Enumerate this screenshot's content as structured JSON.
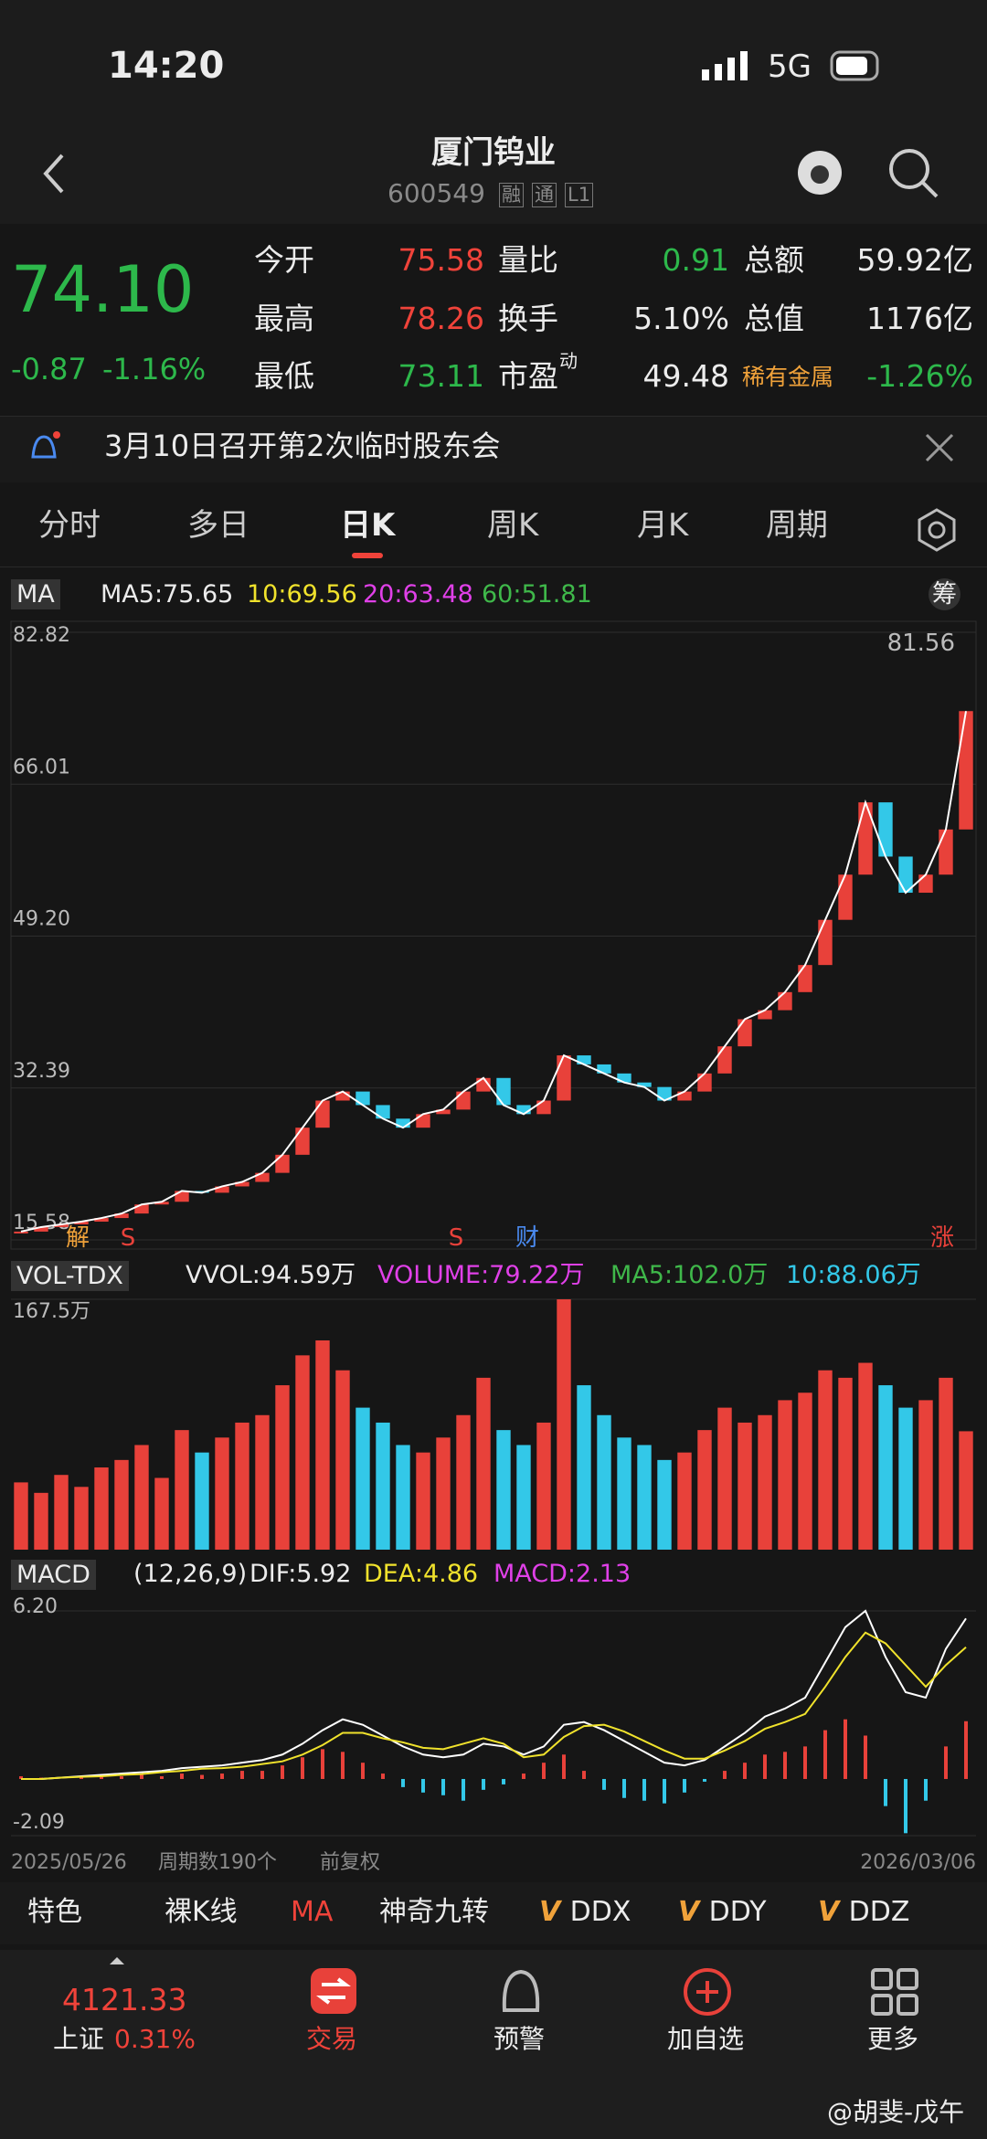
{
  "status": {
    "time": "14:20",
    "network": "5G"
  },
  "header": {
    "title": "厦门钨业",
    "code": "600549",
    "badges": [
      "融",
      "通",
      "L1"
    ]
  },
  "quote": {
    "price": "74.10",
    "change": "-0.87",
    "change_pct": "-1.16%",
    "rows": [
      [
        {
          "label": "今开",
          "value": "75.58"
        },
        {
          "label": "量比",
          "value": "0.91"
        },
        {
          "label": "总额",
          "value": "59.92亿"
        }
      ],
      [
        {
          "label": "最高",
          "value": "78.26"
        },
        {
          "label": "换手",
          "value": "5.10%"
        },
        {
          "label": "总值",
          "value": "1176亿"
        }
      ],
      [
        {
          "label": "最低",
          "value": "73.11"
        },
        {
          "label": "市盈",
          "sup": "动",
          "value": "49.48"
        },
        {
          "label": "稀有金属",
          "value": "-1.26%"
        }
      ]
    ]
  },
  "notice": "3月10日召开第2次临时股东会",
  "tabs": [
    "分时",
    "多日",
    "日K",
    "周K",
    "月K",
    "周期"
  ],
  "ma_legend": {
    "name": "MA",
    "items": [
      "MA5:75.65",
      "10:69.56",
      "20:63.48",
      "60:51.81"
    ],
    "chip": "筹"
  },
  "kline": {
    "high_label": "81.56",
    "ylim": [
      15.58,
      82.82
    ],
    "yticks": [
      82.82,
      66.01,
      {
        "value": 49.2,
        "label": "49.20"
      },
      32.39,
      15.58
    ],
    "color": "#ffffff",
    "values": [
      16.5,
      17,
      17.3,
      17.6,
      18,
      18.5,
      19.5,
      19.8,
      21,
      20.8,
      21.5,
      22,
      23,
      25,
      28,
      31,
      32,
      30.5,
      29,
      28,
      29.5,
      30,
      32,
      33.5,
      30.5,
      29.5,
      31,
      36,
      35,
      34,
      33,
      32.5,
      31,
      32,
      34,
      37,
      40,
      41,
      43,
      46,
      51,
      56,
      64,
      58,
      54,
      56,
      61,
      74.1
    ],
    "markers": [
      "解",
      "S",
      "S",
      "财",
      "涨"
    ]
  },
  "vol_legend": {
    "name": "VOL-TDX",
    "items": [
      "VVOL:94.59万",
      "VOLUME:79.22万",
      "MA5:102.0万",
      "10:88.06万"
    ]
  },
  "volume": {
    "ylim": [
      0,
      167.5
    ],
    "yticks": [
      {
        "value": 167.5,
        "label": "167.5万"
      }
    ],
    "values": [
      45,
      38,
      50,
      42,
      55,
      60,
      70,
      48,
      80,
      65,
      75,
      85,
      90,
      110,
      130,
      140,
      120,
      95,
      85,
      70,
      65,
      75,
      90,
      115,
      80,
      70,
      85,
      167.5,
      110,
      90,
      75,
      70,
      60,
      65,
      80,
      95,
      85,
      90,
      100,
      105,
      120,
      115,
      125,
      110,
      95,
      100,
      115,
      79.22
    ]
  },
  "macd_legend": {
    "name": "MACD",
    "params": "(12,26,9)",
    "items": [
      "DIF:5.92",
      "DEA:4.86",
      "MACD:2.13"
    ]
  },
  "macd": {
    "ylim": [
      -2.09,
      6.2
    ],
    "yticks": [
      {
        "value": 6.2,
        "label": "6.20"
      },
      -2.09
    ],
    "hist": [
      0.1,
      0.05,
      0,
      0.05,
      0.1,
      0.1,
      0.15,
      0.1,
      0.2,
      0.15,
      0.2,
      0.3,
      0.3,
      0.5,
      0.8,
      1.1,
      1.0,
      0.6,
      0.2,
      -0.3,
      -0.5,
      -0.6,
      -0.8,
      -0.4,
      -0.2,
      0.2,
      0.6,
      0.9,
      0.3,
      -0.4,
      -0.7,
      -0.8,
      -0.9,
      -0.5,
      -0.1,
      0.3,
      0.6,
      0.9,
      1.0,
      1.2,
      1.8,
      2.2,
      1.6,
      -1.0,
      -2.0,
      -0.8,
      1.2,
      2.13
    ],
    "dif": [
      0,
      0,
      0.05,
      0.1,
      0.15,
      0.2,
      0.25,
      0.3,
      0.4,
      0.45,
      0.5,
      0.6,
      0.7,
      0.9,
      1.3,
      1.8,
      2.2,
      2.0,
      1.6,
      1.2,
      0.9,
      0.8,
      0.9,
      1.3,
      1.2,
      0.9,
      1.2,
      2.0,
      2.1,
      1.8,
      1.4,
      1.0,
      0.6,
      0.5,
      0.7,
      1.2,
      1.7,
      2.3,
      2.6,
      3.0,
      4.3,
      5.6,
      6.2,
      4.5,
      3.2,
      3.0,
      4.8,
      5.92
    ],
    "dea": [
      0,
      0,
      0.05,
      0.08,
      0.1,
      0.15,
      0.18,
      0.25,
      0.3,
      0.38,
      0.4,
      0.45,
      0.55,
      0.65,
      0.9,
      1.25,
      1.7,
      1.7,
      1.5,
      1.35,
      1.15,
      1.1,
      1.3,
      1.5,
      1.3,
      0.8,
      0.9,
      1.55,
      1.95,
      2.0,
      1.75,
      1.4,
      1.05,
      0.75,
      0.75,
      1.05,
      1.4,
      1.85,
      2.1,
      2.4,
      3.4,
      4.5,
      5.4,
      5.0,
      4.2,
      3.4,
      4.2,
      4.86
    ]
  },
  "footer": {
    "start": "2025/05/26",
    "periods": "周期数190个",
    "adjust": "前复权",
    "end": "2026/03/06"
  },
  "indicators": [
    "特色",
    "裸K线",
    "MA",
    "神奇九转",
    "DDX",
    "DDY",
    "DDZ"
  ],
  "bottom_nav": {
    "index_value": "4121.33",
    "index_name": "上证",
    "index_change": "0.31%",
    "items": [
      "交易",
      "预警",
      "加自选",
      "更多"
    ]
  },
  "watermark": "@胡斐-戊午"
}
